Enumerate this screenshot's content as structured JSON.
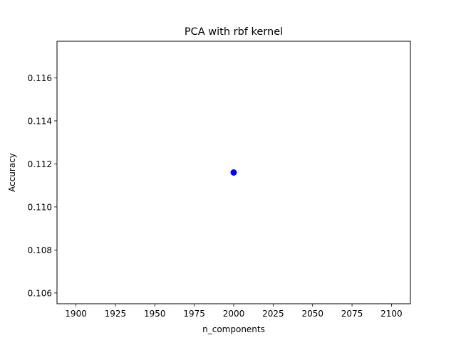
{
  "chart_data": {
    "type": "scatter",
    "title": "PCA with rbf kernel",
    "xlabel": "n_components",
    "ylabel": "Accuracy",
    "xlim": [
      1888,
      2112
    ],
    "ylim": [
      0.1055,
      0.1177
    ],
    "xticks": [
      1900,
      1925,
      1950,
      1975,
      2000,
      2025,
      2050,
      2075,
      2100
    ],
    "xtick_labels": [
      "1900",
      "1925",
      "1950",
      "1975",
      "2000",
      "2025",
      "2050",
      "2075",
      "2100"
    ],
    "yticks": [
      0.106,
      0.108,
      0.11,
      0.112,
      0.114,
      0.116
    ],
    "ytick_labels": [
      "0.106",
      "0.108",
      "0.110",
      "0.112",
      "0.114",
      "0.116"
    ],
    "grid": false,
    "legend": null,
    "point_color": "#0000ff",
    "points": [
      {
        "x": 2000,
        "y": 0.1116
      }
    ]
  }
}
